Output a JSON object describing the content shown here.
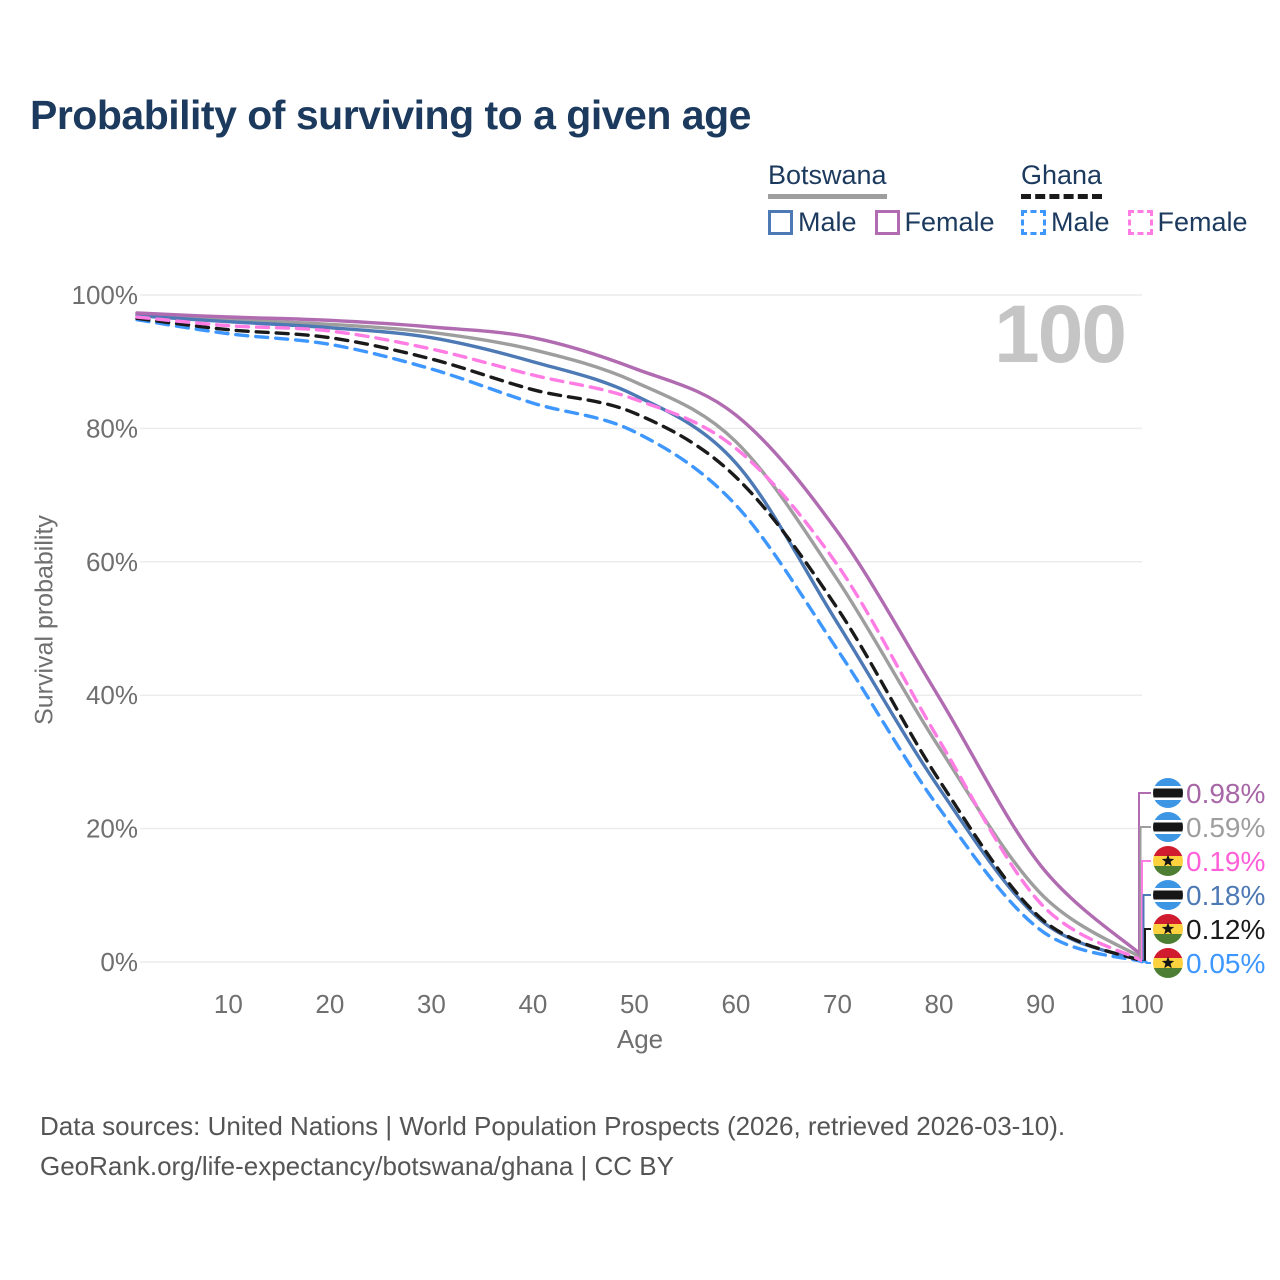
{
  "title": "Probability of surviving to a given age",
  "watermark": "100",
  "legend": {
    "groups": [
      {
        "id": "botswana",
        "label": "Botswana",
        "line_style": "solid",
        "line_color": "#9e9e9e",
        "items": [
          {
            "label": "Male",
            "color": "#4d79b5",
            "style": "solid"
          },
          {
            "label": "Female",
            "color": "#b16bb1",
            "style": "solid"
          }
        ]
      },
      {
        "id": "ghana",
        "label": "Ghana",
        "line_style": "dashed",
        "line_color": "#1a1a1a",
        "items": [
          {
            "label": "Male",
            "color": "#3e97ff",
            "style": "dashed"
          },
          {
            "label": "Female",
            "color": "#ff7ce4",
            "style": "dashed"
          }
        ]
      }
    ]
  },
  "chart_data": {
    "type": "line",
    "title": "Probability of surviving to a given age",
    "xlabel": "Age",
    "ylabel": "Survival probability",
    "xlim": [
      1,
      100
    ],
    "ylim": [
      0,
      100
    ],
    "grid": "horizontal-only",
    "legend_position": "top-right",
    "x_ticks": [
      10,
      20,
      30,
      40,
      50,
      60,
      70,
      80,
      90,
      100
    ],
    "y_ticks": [
      {
        "value": 0,
        "label": "0%"
      },
      {
        "value": 20,
        "label": "20%"
      },
      {
        "value": 40,
        "label": "40%"
      },
      {
        "value": 60,
        "label": "60%"
      },
      {
        "value": 80,
        "label": "80%"
      },
      {
        "value": 100,
        "label": "100%"
      }
    ],
    "x": [
      1,
      10,
      20,
      30,
      40,
      50,
      60,
      70,
      80,
      90,
      100
    ],
    "series": [
      {
        "id": "botswana-female",
        "name": "Botswana Female",
        "country": "Botswana",
        "sex": "female",
        "color": "#b16bb1",
        "line_style": "solid",
        "values": [
          97.3,
          96.7,
          96.2,
          95.2,
          93.6,
          89.0,
          82.0,
          64.5,
          39.7,
          14.5,
          0.98
        ],
        "end_label": {
          "text": "0.98%",
          "color": "#a767a7",
          "flag": "botswana"
        }
      },
      {
        "id": "botswana-all",
        "name": "Botswana",
        "country": "Botswana",
        "sex": "all",
        "color": "#9e9e9e",
        "line_style": "solid",
        "values": [
          97.1,
          96.3,
          95.6,
          94.4,
          91.8,
          87.0,
          78.0,
          57.3,
          32.2,
          10.3,
          0.59
        ],
        "end_label": {
          "text": "0.59%",
          "color": "#9e9e9e",
          "flag": "botswana"
        }
      },
      {
        "id": "botswana-male",
        "name": "Botswana Male",
        "country": "Botswana",
        "sex": "male",
        "color": "#4d79b5",
        "line_style": "solid",
        "values": [
          96.9,
          96.0,
          95.1,
          93.6,
          90.0,
          85.0,
          74.8,
          50.8,
          26.1,
          6.3,
          0.18
        ],
        "end_label": {
          "text": "0.18%",
          "color": "#4d79b5",
          "flag": "botswana"
        }
      },
      {
        "id": "ghana-female",
        "name": "Ghana Female",
        "country": "Ghana",
        "sex": "female",
        "color": "#ff7ce4",
        "line_style": "dashed",
        "values": [
          96.7,
          95.4,
          94.6,
          91.9,
          88.0,
          84.4,
          77.0,
          59.5,
          33.3,
          8.8,
          0.19
        ],
        "end_label": {
          "text": "0.19%",
          "color": "#ff5fd8",
          "flag": "ghana"
        }
      },
      {
        "id": "ghana-all",
        "name": "Ghana",
        "country": "Ghana",
        "sex": "all",
        "color": "#1a1a1a",
        "line_style": "dashed",
        "values": [
          96.5,
          94.8,
          93.6,
          90.4,
          85.8,
          82.3,
          72.7,
          53.0,
          27.3,
          6.6,
          0.12
        ],
        "end_label": {
          "text": "0.12%",
          "color": "#1a1a1a",
          "flag": "ghana"
        }
      },
      {
        "id": "ghana-male",
        "name": "Ghana Male",
        "country": "Ghana",
        "sex": "male",
        "color": "#3e97ff",
        "line_style": "dashed",
        "values": [
          96.3,
          94.2,
          92.6,
          88.9,
          83.8,
          79.5,
          68.5,
          46.8,
          23.1,
          4.8,
          0.05
        ],
        "end_label": {
          "text": "0.05%",
          "color": "#3e97ff",
          "flag": "ghana"
        }
      }
    ],
    "end_label_order": [
      "botswana-female",
      "botswana-all",
      "ghana-female",
      "botswana-male",
      "ghana-all",
      "ghana-male"
    ],
    "flags": {
      "botswana": {
        "blue": "#3d96e3",
        "white": "#ffffff",
        "black": "#161616"
      },
      "ghana": {
        "red": "#d01c2e",
        "gold": "#fdd23e",
        "green": "#4e7e33",
        "black": "#161616"
      }
    }
  },
  "footer": {
    "line1": "Data sources: United Nations | World Population Prospects (2026, retrieved 2026-03-10).",
    "line2": "GeoRank.org/life-expectancy/botswana/ghana | CC BY"
  }
}
